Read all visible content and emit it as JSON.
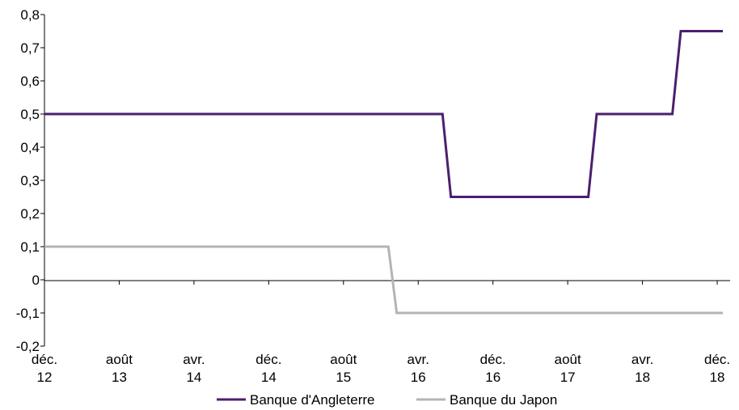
{
  "chart_data": {
    "type": "line",
    "title": "",
    "xlabel": "",
    "ylabel": "",
    "ylim": [
      -0.2,
      0.8
    ],
    "y_ticks": [
      "0,8",
      "0,7",
      "0,6",
      "0,5",
      "0,4",
      "0,3",
      "0,2",
      "0,1",
      "0",
      "-0,1",
      "-0,2"
    ],
    "y_tick_values": [
      0.8,
      0.7,
      0.6,
      0.5,
      0.4,
      0.3,
      0.2,
      0.1,
      0,
      -0.1,
      -0.2
    ],
    "x_ticks": [
      {
        "month": "déc.",
        "year": "12",
        "index": 0
      },
      {
        "month": "août",
        "year": "13",
        "index": 8
      },
      {
        "month": "avr.",
        "year": "14",
        "index": 16
      },
      {
        "month": "déc.",
        "year": "14",
        "index": 24
      },
      {
        "month": "août",
        "year": "15",
        "index": 32
      },
      {
        "month": "avr.",
        "year": "16",
        "index": 40
      },
      {
        "month": "déc.",
        "year": "16",
        "index": 48
      },
      {
        "month": "août",
        "year": "17",
        "index": 56
      },
      {
        "month": "avr.",
        "year": "18",
        "index": 64
      },
      {
        "month": "déc.",
        "year": "18",
        "index": 72
      }
    ],
    "x_range": [
      0,
      72.6
    ],
    "grid": false,
    "legend_position": "bottom",
    "series": [
      {
        "name": "Banque d'Angleterre",
        "color": "#4b1f6f",
        "points": [
          [
            0,
            0.5
          ],
          [
            42.6,
            0.5
          ],
          [
            43.5,
            0.25
          ],
          [
            58.2,
            0.25
          ],
          [
            59.1,
            0.5
          ],
          [
            67.2,
            0.5
          ],
          [
            68.1,
            0.75
          ],
          [
            72.6,
            0.75
          ]
        ]
      },
      {
        "name": "Banque du Japon",
        "color": "#b4b4b4",
        "points": [
          [
            0,
            0.1
          ],
          [
            36.8,
            0.1
          ],
          [
            37.7,
            -0.1
          ],
          [
            72.6,
            -0.1
          ]
        ]
      }
    ]
  }
}
